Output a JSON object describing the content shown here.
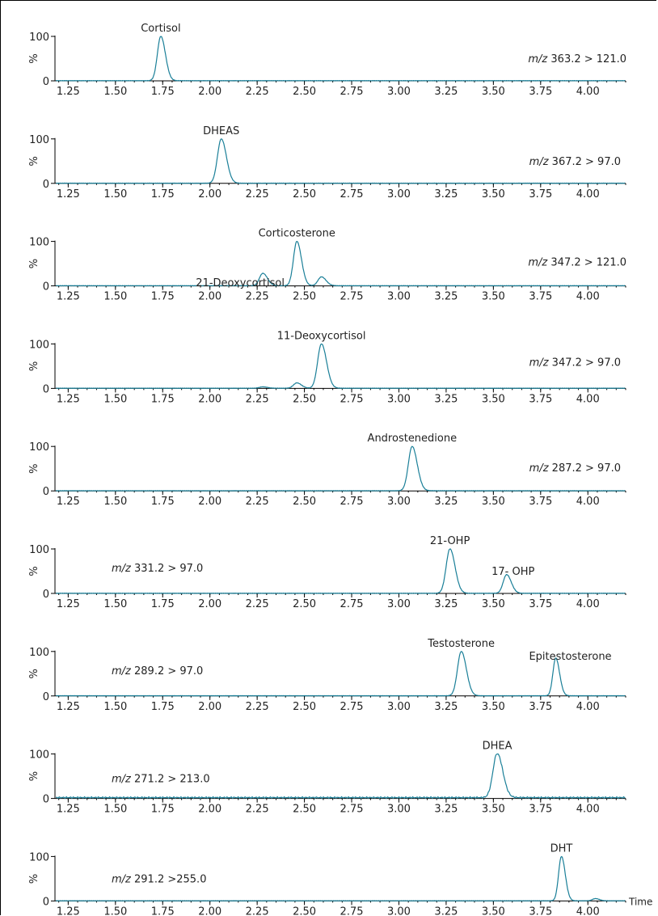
{
  "chart_data": [
    {
      "type": "line",
      "transition_prefix": "m/z",
      "transition_value": "363.2 > 121.0",
      "peaks": [
        {
          "label": "Cortisol",
          "x": 1.74,
          "height": 100,
          "width": 0.018
        }
      ],
      "noise": 0,
      "ylabel": "%",
      "yticks": [
        "100",
        "0"
      ],
      "xticks": [
        "1.25",
        "1.50",
        "1.75",
        "2.00",
        "2.25",
        "2.50",
        "2.75",
        "3.00",
        "3.25",
        "3.50",
        "3.75",
        "4.00"
      ],
      "xlim": [
        1.18,
        4.2
      ],
      "ylim": [
        0,
        100
      ]
    },
    {
      "type": "line",
      "transition_prefix": "m/z",
      "transition_value": "367.2 > 97.0",
      "peaks": [
        {
          "label": "DHEAS",
          "x": 2.06,
          "height": 100,
          "width": 0.02
        }
      ],
      "noise": 0,
      "ylabel": "%",
      "yticks": [
        "100",
        "0"
      ],
      "xticks": [
        "1.25",
        "1.50",
        "1.75",
        "2.00",
        "2.25",
        "2.50",
        "2.75",
        "3.00",
        "3.25",
        "3.50",
        "3.75",
        "4.00"
      ],
      "xlim": [
        1.18,
        4.2
      ],
      "ylim": [
        0,
        100
      ]
    },
    {
      "type": "line",
      "transition_prefix": "m/z",
      "transition_value": "347.2 > 121.0",
      "peaks": [
        {
          "label": "21-Deoxycortisol",
          "x": 2.28,
          "height": 28,
          "width": 0.018
        },
        {
          "label": "Corticosterone",
          "x": 2.46,
          "height": 100,
          "width": 0.018
        },
        {
          "label": "",
          "x": 2.59,
          "height": 20,
          "width": 0.018
        }
      ],
      "noise": 0,
      "ylabel": "%",
      "yticks": [
        "100",
        "0"
      ],
      "xticks": [
        "1.25",
        "1.50",
        "1.75",
        "2.00",
        "2.25",
        "2.50",
        "2.75",
        "3.00",
        "3.25",
        "3.50",
        "3.75",
        "4.00"
      ],
      "xlim": [
        1.18,
        4.2
      ],
      "ylim": [
        0,
        100
      ]
    },
    {
      "type": "line",
      "transition_prefix": "m/z",
      "transition_value": "347.2 > 97.0",
      "peaks": [
        {
          "label": "",
          "x": 2.28,
          "height": 3,
          "width": 0.018
        },
        {
          "label": "",
          "x": 2.46,
          "height": 12,
          "width": 0.018
        },
        {
          "label": "11-Deoxycortisol",
          "x": 2.59,
          "height": 100,
          "width": 0.02
        }
      ],
      "noise": 0,
      "ylabel": "%",
      "yticks": [
        "100",
        "0"
      ],
      "xticks": [
        "1.25",
        "1.50",
        "1.75",
        "2.00",
        "2.25",
        "2.50",
        "2.75",
        "3.00",
        "3.25",
        "3.50",
        "3.75",
        "4.00"
      ],
      "xlim": [
        1.18,
        4.2
      ],
      "ylim": [
        0,
        100
      ]
    },
    {
      "type": "line",
      "transition_prefix": "m/z",
      "transition_value": "287.2 > 97.0",
      "peaks": [
        {
          "label": "Androstenedione",
          "x": 3.07,
          "height": 100,
          "width": 0.02
        }
      ],
      "noise": 0,
      "ylabel": "%",
      "yticks": [
        "100",
        "0"
      ],
      "xticks": [
        "1.25",
        "1.50",
        "1.75",
        "2.00",
        "2.25",
        "2.50",
        "2.75",
        "3.00",
        "3.25",
        "3.50",
        "3.75",
        "4.00"
      ],
      "xlim": [
        1.18,
        4.2
      ],
      "ylim": [
        0,
        100
      ]
    },
    {
      "type": "line",
      "transition_prefix": "m/z",
      "transition_value": "331.2 > 97.0",
      "peaks": [
        {
          "label": "21-OHP",
          "x": 3.27,
          "height": 100,
          "width": 0.02
        },
        {
          "label": "17- OHP",
          "x": 3.57,
          "height": 42,
          "width": 0.018
        }
      ],
      "noise": 0,
      "ylabel": "%",
      "yticks": [
        "100",
        "0"
      ],
      "xticks": [
        "1.25",
        "1.50",
        "1.75",
        "2.00",
        "2.25",
        "2.50",
        "2.75",
        "3.00",
        "3.25",
        "3.50",
        "3.75",
        "4.00"
      ],
      "xlim": [
        1.18,
        4.2
      ],
      "ylim": [
        0,
        100
      ]
    },
    {
      "type": "line",
      "transition_prefix": "m/z",
      "transition_value": "289.2 > 97.0",
      "peaks": [
        {
          "label": "Testosterone",
          "x": 3.33,
          "height": 100,
          "width": 0.02
        },
        {
          "label": "Epitestosterone",
          "x": 3.83,
          "height": 85,
          "width": 0.015
        }
      ],
      "noise": 0,
      "ylabel": "%",
      "yticks": [
        "100",
        "0"
      ],
      "xticks": [
        "1.25",
        "1.50",
        "1.75",
        "2.00",
        "2.25",
        "2.50",
        "2.75",
        "3.00",
        "3.25",
        "3.50",
        "3.75",
        "4.00"
      ],
      "xlim": [
        1.18,
        4.2
      ],
      "ylim": [
        0,
        100
      ]
    },
    {
      "type": "line",
      "transition_prefix": "m/z",
      "transition_value": "271.2 > 213.0",
      "peaks": [
        {
          "label": "DHEA",
          "x": 3.52,
          "height": 100,
          "width": 0.022
        }
      ],
      "noise": 4,
      "ylabel": "%",
      "yticks": [
        "100",
        "0"
      ],
      "xticks": [
        "1.25",
        "1.50",
        "1.75",
        "2.00",
        "2.25",
        "2.50",
        "2.75",
        "3.00",
        "3.25",
        "3.50",
        "3.75",
        "4.00"
      ],
      "xlim": [
        1.18,
        4.2
      ],
      "ylim": [
        0,
        100
      ]
    },
    {
      "type": "line",
      "transition_prefix": "m/z",
      "transition_value": "291.2 >255.0",
      "peaks": [
        {
          "label": "DHT",
          "x": 3.86,
          "height": 100,
          "width": 0.015
        },
        {
          "label": "",
          "x": 4.04,
          "height": 5,
          "width": 0.015
        }
      ],
      "noise": 0,
      "ylabel": "%",
      "yticks": [
        "100",
        "0"
      ],
      "xticks": [
        "1.25",
        "1.50",
        "1.75",
        "2.00",
        "2.25",
        "2.50",
        "2.75",
        "3.00",
        "3.25",
        "3.50",
        "3.75",
        "4.00"
      ],
      "xlim": [
        1.18,
        4.2
      ],
      "ylim": [
        0,
        100
      ],
      "xlabel": "Time"
    }
  ],
  "colors": {
    "trace": "#1a7f98",
    "axis": "#000000",
    "text": "#222222"
  }
}
